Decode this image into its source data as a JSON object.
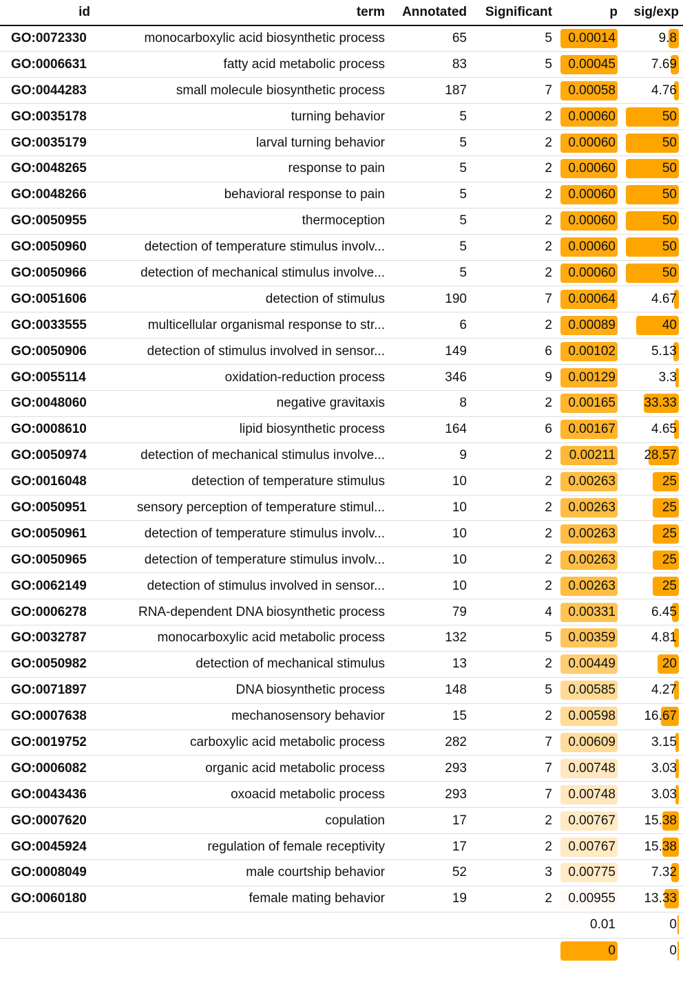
{
  "table": {
    "columns": {
      "id": "id",
      "term": "term",
      "annotated": "Annotated",
      "significant": "Significant",
      "p": "p",
      "sig_exp": "sig/exp"
    },
    "rows": [
      {
        "id": "GO:0072330",
        "term": "monocarboxylic acid biosynthetic process",
        "annotated": "65",
        "significant": "5",
        "p": "0.00014",
        "sig_exp": "9.8"
      },
      {
        "id": "GO:0006631",
        "term": "fatty acid metabolic process",
        "annotated": "83",
        "significant": "5",
        "p": "0.00045",
        "sig_exp": "7.69"
      },
      {
        "id": "GO:0044283",
        "term": "small molecule biosynthetic process",
        "annotated": "187",
        "significant": "7",
        "p": "0.00058",
        "sig_exp": "4.76"
      },
      {
        "id": "GO:0035178",
        "term": "turning behavior",
        "annotated": "5",
        "significant": "2",
        "p": "0.00060",
        "sig_exp": "50"
      },
      {
        "id": "GO:0035179",
        "term": "larval turning behavior",
        "annotated": "5",
        "significant": "2",
        "p": "0.00060",
        "sig_exp": "50"
      },
      {
        "id": "GO:0048265",
        "term": "response to pain",
        "annotated": "5",
        "significant": "2",
        "p": "0.00060",
        "sig_exp": "50"
      },
      {
        "id": "GO:0048266",
        "term": "behavioral response to pain",
        "annotated": "5",
        "significant": "2",
        "p": "0.00060",
        "sig_exp": "50"
      },
      {
        "id": "GO:0050955",
        "term": "thermoception",
        "annotated": "5",
        "significant": "2",
        "p": "0.00060",
        "sig_exp": "50"
      },
      {
        "id": "GO:0050960",
        "term": "detection of temperature stimulus involv...",
        "annotated": "5",
        "significant": "2",
        "p": "0.00060",
        "sig_exp": "50"
      },
      {
        "id": "GO:0050966",
        "term": "detection of mechanical stimulus involve...",
        "annotated": "5",
        "significant": "2",
        "p": "0.00060",
        "sig_exp": "50"
      },
      {
        "id": "GO:0051606",
        "term": "detection of stimulus",
        "annotated": "190",
        "significant": "7",
        "p": "0.00064",
        "sig_exp": "4.67"
      },
      {
        "id": "GO:0033555",
        "term": "multicellular organismal response to str...",
        "annotated": "6",
        "significant": "2",
        "p": "0.00089",
        "sig_exp": "40"
      },
      {
        "id": "GO:0050906",
        "term": "detection of stimulus involved in sensor...",
        "annotated": "149",
        "significant": "6",
        "p": "0.00102",
        "sig_exp": "5.13"
      },
      {
        "id": "GO:0055114",
        "term": "oxidation-reduction process",
        "annotated": "346",
        "significant": "9",
        "p": "0.00129",
        "sig_exp": "3.3"
      },
      {
        "id": "GO:0048060",
        "term": "negative gravitaxis",
        "annotated": "8",
        "significant": "2",
        "p": "0.00165",
        "sig_exp": "33.33"
      },
      {
        "id": "GO:0008610",
        "term": "lipid biosynthetic process",
        "annotated": "164",
        "significant": "6",
        "p": "0.00167",
        "sig_exp": "4.65"
      },
      {
        "id": "GO:0050974",
        "term": "detection of mechanical stimulus involve...",
        "annotated": "9",
        "significant": "2",
        "p": "0.00211",
        "sig_exp": "28.57"
      },
      {
        "id": "GO:0016048",
        "term": "detection of temperature stimulus",
        "annotated": "10",
        "significant": "2",
        "p": "0.00263",
        "sig_exp": "25"
      },
      {
        "id": "GO:0050951",
        "term": "sensory perception of temperature stimul...",
        "annotated": "10",
        "significant": "2",
        "p": "0.00263",
        "sig_exp": "25"
      },
      {
        "id": "GO:0050961",
        "term": "detection of temperature stimulus involv...",
        "annotated": "10",
        "significant": "2",
        "p": "0.00263",
        "sig_exp": "25"
      },
      {
        "id": "GO:0050965",
        "term": "detection of temperature stimulus involv...",
        "annotated": "10",
        "significant": "2",
        "p": "0.00263",
        "sig_exp": "25"
      },
      {
        "id": "GO:0062149",
        "term": "detection of stimulus involved in sensor...",
        "annotated": "10",
        "significant": "2",
        "p": "0.00263",
        "sig_exp": "25"
      },
      {
        "id": "GO:0006278",
        "term": "RNA-dependent DNA biosynthetic process",
        "annotated": "79",
        "significant": "4",
        "p": "0.00331",
        "sig_exp": "6.45"
      },
      {
        "id": "GO:0032787",
        "term": "monocarboxylic acid metabolic process",
        "annotated": "132",
        "significant": "5",
        "p": "0.00359",
        "sig_exp": "4.81"
      },
      {
        "id": "GO:0050982",
        "term": "detection of mechanical stimulus",
        "annotated": "13",
        "significant": "2",
        "p": "0.00449",
        "sig_exp": "20"
      },
      {
        "id": "GO:0071897",
        "term": "DNA biosynthetic process",
        "annotated": "148",
        "significant": "5",
        "p": "0.00585",
        "sig_exp": "4.27"
      },
      {
        "id": "GO:0007638",
        "term": "mechanosensory behavior",
        "annotated": "15",
        "significant": "2",
        "p": "0.00598",
        "sig_exp": "16.67"
      },
      {
        "id": "GO:0019752",
        "term": "carboxylic acid metabolic process",
        "annotated": "282",
        "significant": "7",
        "p": "0.00609",
        "sig_exp": "3.15"
      },
      {
        "id": "GO:0006082",
        "term": "organic acid metabolic process",
        "annotated": "293",
        "significant": "7",
        "p": "0.00748",
        "sig_exp": "3.03"
      },
      {
        "id": "GO:0043436",
        "term": "oxoacid metabolic process",
        "annotated": "293",
        "significant": "7",
        "p": "0.00748",
        "sig_exp": "3.03"
      },
      {
        "id": "GO:0007620",
        "term": "copulation",
        "annotated": "17",
        "significant": "2",
        "p": "0.00767",
        "sig_exp": "15.38"
      },
      {
        "id": "GO:0045924",
        "term": "regulation of female receptivity",
        "annotated": "17",
        "significant": "2",
        "p": "0.00767",
        "sig_exp": "15.38"
      },
      {
        "id": "GO:0008049",
        "term": "male courtship behavior",
        "annotated": "52",
        "significant": "3",
        "p": "0.00775",
        "sig_exp": "7.32"
      },
      {
        "id": "GO:0060180",
        "term": "female mating behavior",
        "annotated": "19",
        "significant": "2",
        "p": "0.00955",
        "sig_exp": "13.33"
      },
      {
        "p": "0.01",
        "sig_exp": "0"
      },
      {
        "p": "0",
        "sig_exp": "0"
      }
    ]
  }
}
